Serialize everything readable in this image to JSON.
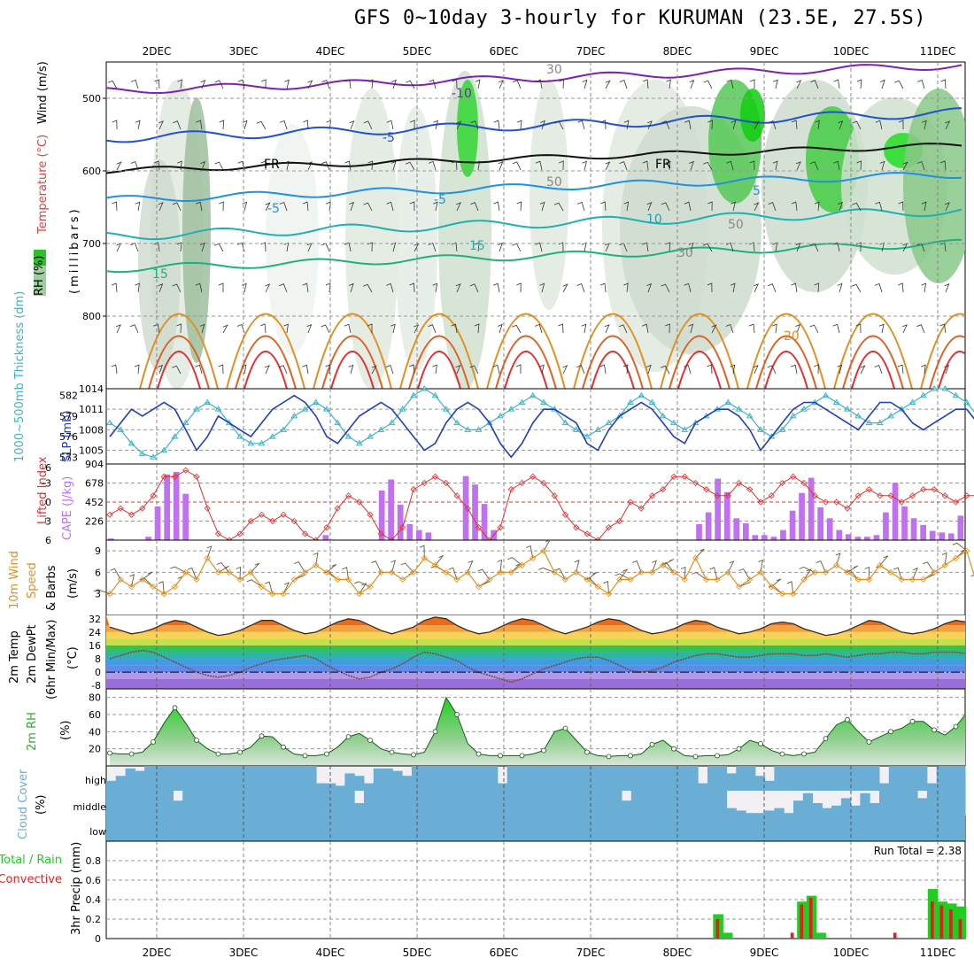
{
  "title": "GFS 0~10day 3-hourly for KURUMAN (23.5E, 27.5S)",
  "dates": [
    "2DEC",
    "3DEC",
    "4DEC",
    "5DEC",
    "6DEC",
    "7DEC",
    "8DEC",
    "9DEC",
    "10DEC",
    "11DEC"
  ],
  "colors": {
    "slp": "#1f3fbf",
    "thickness": "#3fb4c4",
    "lifted_index": "#e03030",
    "cape": "#c071f0",
    "wind_speed": "#e09020",
    "rh_fill": "#2bb02b",
    "cloud": "#6aaed6",
    "cloud_bg": "#f2f0f5",
    "precip_total": "#22cc22",
    "precip_conv": "#e02020"
  },
  "panels": {
    "upper": {
      "label_rh": "RH (%)",
      "label_temperature": "Temperature (°C)",
      "label_wind": "Wind (m/s)",
      "label_axis": "(millibars)",
      "yticks": [
        "500",
        "600",
        "700",
        "800"
      ],
      "contour_labels": [
        "-10",
        "-5",
        "FR",
        "FR",
        "-5",
        "-5",
        "5",
        "10",
        "15",
        "15",
        "20",
        "30",
        "50",
        "50",
        "30"
      ]
    },
    "slp": {
      "label_thickness": "1000~500mb Thickness (dm)",
      "label_slp": "SLP (mb)",
      "thickness_ticks": [
        "582",
        "579",
        "576",
        "573"
      ],
      "slp_ticks": [
        "1014",
        "1011",
        "1008",
        "1005"
      ]
    },
    "li": {
      "label_li": "Lifted Index",
      "label_cape": "CAPE (J/kg)",
      "li_ticks": [
        "-3",
        "0",
        "3",
        "6"
      ],
      "li_top_tick": "-6",
      "cape_ticks": [
        "904",
        "678",
        "452",
        "226"
      ]
    },
    "wind10": {
      "label_a": "10m Wind",
      "label_b": "Speed",
      "label_c": "& Barbs",
      "label_d": "(m/s)",
      "ticks": [
        "9",
        "6",
        "3"
      ]
    },
    "temp2m": {
      "label_a": "2m Temp",
      "label_b": "2m DewPt",
      "label_c": "(6hr Min/Max)",
      "label_d": "(°C)",
      "ticks": [
        "32",
        "24",
        "16",
        "8",
        "0",
        "-8"
      ]
    },
    "rh2m": {
      "label_a": "2m RH",
      "label_b": "(%)",
      "ticks": [
        "80",
        "60",
        "40",
        "20"
      ]
    },
    "cloud": {
      "label_a": "Cloud Cover",
      "label_b": "(%)",
      "levels": [
        "high",
        "middle",
        "low"
      ]
    },
    "precip": {
      "label_a": "Total / Rain",
      "label_b": "Convective",
      "label_c": "3hr Precip (mm)",
      "run_total": "Run Total = 2.38",
      "ticks": [
        "0.8",
        "0.6",
        "0.4",
        "0.2",
        "0"
      ]
    }
  },
  "chart_data": {
    "type": "line",
    "x_step_hours": 3,
    "series": [
      {
        "name": "SLP (mb)",
        "ylim": [
          1003,
          1014
        ],
        "values": [
          1007,
          1009,
          1011,
          1010,
          1011,
          1012,
          1011,
          1008,
          1005,
          1007,
          1010,
          1009,
          1008,
          1007,
          1009,
          1011,
          1012,
          1013,
          1012,
          1010,
          1007,
          1006,
          1008,
          1010,
          1011,
          1012,
          1011,
          1009,
          1007,
          1005,
          1006,
          1009,
          1011,
          1012,
          1011,
          1009,
          1006,
          1004,
          1006,
          1009,
          1011,
          1011,
          1010,
          1009,
          1006,
          1005,
          1008,
          1010,
          1011,
          1012,
          1011,
          1009,
          1007,
          1006,
          1009,
          1010,
          1011,
          1011,
          1010,
          1008,
          1005,
          1007,
          1009,
          1011,
          1012,
          1012,
          1011,
          1010,
          1009,
          1008,
          1010,
          1012,
          1012,
          1011,
          1009,
          1008,
          1009,
          1010,
          1011,
          1011,
          1009,
          1007,
          1009,
          1010,
          1010
        ]
      },
      {
        "name": "1000~500mb Thickness (dm)",
        "ylim": [
          572,
          583
        ],
        "values": [
          578,
          577,
          575,
          573.5,
          573,
          574,
          576,
          578,
          580,
          581,
          580,
          578,
          576,
          575,
          575,
          576,
          577,
          579,
          580,
          581,
          580,
          578,
          576,
          575,
          576,
          577,
          578,
          580,
          582,
          583,
          582,
          580,
          578,
          577,
          577,
          578,
          579,
          580,
          581,
          582,
          581,
          580,
          578,
          577,
          576,
          577,
          578,
          579,
          581,
          582,
          581,
          579,
          578,
          577,
          578,
          579,
          580,
          581,
          580,
          579,
          577,
          576,
          577,
          579,
          580,
          581,
          582,
          581,
          580,
          579,
          578,
          578,
          579,
          580,
          581,
          582,
          583,
          583,
          582,
          581,
          579,
          578,
          577,
          578,
          578
        ]
      },
      {
        "name": "Lifted Index",
        "ylim": [
          6,
          -6
        ],
        "values": [
          2,
          1,
          2,
          1,
          -1,
          -4,
          -4,
          -5,
          -4,
          1,
          5,
          6,
          5,
          3,
          2,
          3,
          2,
          3,
          5,
          6,
          4,
          1,
          -1,
          0,
          2,
          5,
          6,
          4,
          -2,
          -3,
          -4,
          -3,
          -1,
          1,
          4,
          6,
          4,
          -2,
          -3,
          -4,
          -3,
          -1,
          2,
          4,
          5,
          6,
          4,
          3,
          0,
          1,
          -1,
          -2,
          -4,
          -4,
          -3,
          -2,
          -1,
          -1,
          -3,
          -2,
          0,
          -1,
          -3,
          -4,
          -3,
          -1,
          0,
          0,
          1,
          -1,
          -2,
          -1,
          -1,
          0,
          -1,
          -2,
          -2,
          -1,
          0,
          -1,
          -1,
          -2,
          -2,
          -2,
          -2
        ]
      },
      {
        "name": "CAPE (J/kg)",
        "ylim": [
          0,
          904
        ],
        "values": [
          20,
          0,
          0,
          0,
          40,
          400,
          780,
          810,
          550,
          0,
          0,
          0,
          0,
          0,
          0,
          0,
          0,
          0,
          0,
          0,
          0,
          0,
          0,
          60,
          0,
          0,
          0,
          0,
          0,
          590,
          720,
          420,
          190,
          120,
          90,
          0,
          0,
          0,
          760,
          660,
          430,
          120,
          0,
          0,
          0,
          0,
          0,
          0,
          0,
          0,
          0,
          0,
          0,
          0,
          0,
          0,
          0,
          0,
          0,
          0,
          0,
          0,
          0,
          190,
          330,
          730,
          570,
          260,
          200,
          60,
          60,
          40,
          120,
          350,
          560,
          740,
          390,
          260,
          120,
          70,
          40,
          40,
          60,
          330,
          680,
          400,
          260,
          180,
          110,
          90,
          80,
          290
        ]
      },
      {
        "name": "10m Wind Speed (m/s)",
        "ylim": [
          0,
          10.5
        ],
        "values": [
          3,
          5,
          4,
          5,
          4,
          3,
          4,
          6,
          5,
          8,
          6,
          6,
          5,
          6,
          4,
          3,
          3,
          5,
          6,
          7,
          6,
          5,
          5,
          3,
          4,
          6,
          6,
          5,
          6,
          8,
          7,
          6,
          5,
          6,
          4,
          5,
          6,
          6,
          7,
          8,
          9,
          6,
          5,
          6,
          5,
          4,
          3,
          5,
          5,
          6,
          6,
          7,
          6,
          5,
          8,
          5,
          5,
          6,
          4,
          5,
          6,
          4,
          3,
          3,
          5,
          6,
          6,
          7,
          6,
          5,
          5,
          7,
          6,
          5,
          5,
          5,
          6,
          7,
          8,
          9,
          4,
          2,
          1,
          2,
          3,
          4,
          5,
          6,
          5,
          6,
          6,
          5,
          6,
          7,
          6,
          6
        ]
      },
      {
        "name": "2m Temperature (°C)",
        "ylim": [
          -10,
          34
        ],
        "values": [
          27,
          25,
          23,
          24,
          26,
          29,
          31,
          30,
          27,
          24,
          22,
          23,
          25,
          28,
          31,
          31,
          28,
          25,
          23,
          24,
          27,
          30,
          32,
          31,
          28,
          25,
          23,
          25,
          27,
          31,
          33,
          32,
          28,
          25,
          23,
          24,
          27,
          30,
          32,
          31,
          28,
          25,
          23,
          25,
          27,
          30,
          32,
          31,
          28,
          25,
          23,
          24,
          26,
          29,
          31,
          30,
          27,
          25,
          23,
          24,
          26,
          29,
          30,
          29,
          26,
          24,
          22,
          23,
          25,
          28,
          31,
          30,
          27,
          24,
          23,
          24,
          26,
          29,
          31,
          30,
          27,
          25,
          23,
          24,
          25
        ]
      },
      {
        "name": "2m Dew Point (°C)",
        "ylim": [
          -10,
          34
        ],
        "values": [
          8,
          10,
          12,
          13,
          12,
          9,
          6,
          3,
          0,
          -2,
          -3,
          -2,
          0,
          3,
          5,
          7,
          8,
          9,
          10,
          8,
          4,
          1,
          -2,
          -4,
          -3,
          0,
          2,
          5,
          9,
          12,
          11,
          9,
          7,
          3,
          0,
          -2,
          -4,
          -6,
          -4,
          -1,
          2,
          4,
          6,
          8,
          9,
          9,
          7,
          4,
          1,
          0,
          1,
          3,
          6,
          8,
          10,
          11,
          11,
          10,
          9,
          9,
          10,
          11,
          11,
          11,
          10,
          10,
          11,
          10,
          9,
          10,
          11,
          11,
          12,
          12,
          11,
          11,
          12,
          12,
          12,
          11,
          12,
          13,
          14,
          15,
          15
        ]
      },
      {
        "name": "2m RH (%)",
        "ylim": [
          0,
          90
        ],
        "values": [
          15,
          14,
          14,
          16,
          28,
          50,
          68,
          50,
          30,
          20,
          14,
          14,
          16,
          22,
          35,
          34,
          22,
          14,
          12,
          12,
          14,
          22,
          34,
          38,
          30,
          20,
          16,
          14,
          13,
          16,
          40,
          80,
          60,
          26,
          14,
          12,
          12,
          12,
          12,
          14,
          18,
          40,
          44,
          30,
          16,
          12,
          11,
          12,
          12,
          14,
          25,
          30,
          20,
          12,
          11,
          12,
          12,
          13,
          20,
          30,
          26,
          18,
          14,
          12,
          14,
          16,
          32,
          48,
          54,
          40,
          28,
          34,
          40,
          44,
          52,
          52,
          42,
          36,
          46,
          62,
          58,
          50,
          52,
          40,
          30,
          28,
          32,
          54,
          66,
          62,
          52
        ]
      },
      {
        "name": "3hr Precip Total (mm)",
        "ylim": [
          0,
          1.0
        ],
        "values": [
          0,
          0,
          0,
          0,
          0,
          0,
          0,
          0,
          0,
          0,
          0,
          0,
          0,
          0,
          0,
          0,
          0,
          0,
          0,
          0,
          0,
          0,
          0,
          0,
          0,
          0,
          0,
          0,
          0,
          0,
          0,
          0,
          0,
          0,
          0,
          0,
          0,
          0,
          0,
          0,
          0,
          0,
          0,
          0,
          0,
          0,
          0,
          0,
          0,
          0,
          0,
          0,
          0,
          0,
          0,
          0,
          0,
          0,
          0,
          0,
          0,
          0,
          0,
          0,
          0,
          0.25,
          0.06,
          0,
          0,
          0,
          0,
          0,
          0,
          0,
          0.38,
          0.44,
          0.06,
          0,
          0,
          0,
          0,
          0,
          0,
          0,
          0,
          0,
          0,
          0,
          0.51,
          0.38,
          0.36,
          0.33
        ]
      },
      {
        "name": "3hr Convective Precip (mm)",
        "ylim": [
          0,
          1.0
        ],
        "values": [
          0,
          0,
          0,
          0,
          0,
          0,
          0,
          0,
          0,
          0,
          0,
          0,
          0,
          0,
          0,
          0,
          0,
          0,
          0,
          0,
          0,
          0,
          0,
          0,
          0,
          0,
          0,
          0,
          0,
          0,
          0,
          0,
          0,
          0,
          0,
          0,
          0,
          0,
          0,
          0,
          0,
          0,
          0,
          0,
          0,
          0,
          0,
          0,
          0,
          0,
          0,
          0,
          0,
          0,
          0,
          0,
          0,
          0,
          0,
          0,
          0,
          0,
          0,
          0,
          0,
          0.2,
          0,
          0,
          0,
          0,
          0,
          0,
          0,
          0.06,
          0.35,
          0.42,
          0,
          0,
          0,
          0,
          0,
          0,
          0,
          0,
          0.06,
          0,
          0,
          0,
          0.38,
          0.34,
          0.3,
          0.2
        ]
      }
    ],
    "cloud_cover": {
      "high": [
        40,
        60,
        90,
        80,
        100,
        100,
        100,
        100,
        100,
        100,
        100,
        100,
        100,
        100,
        100,
        100,
        100,
        100,
        100,
        100,
        100,
        100,
        30,
        30,
        20,
        70,
        60,
        30,
        90,
        90,
        80,
        60,
        100,
        100,
        100,
        100,
        100,
        100,
        100,
        100,
        100,
        30,
        100,
        100,
        100,
        100,
        100,
        100,
        100,
        100,
        100,
        100,
        100,
        100,
        100,
        100,
        100,
        100,
        100,
        100,
        100,
        100,
        30,
        100,
        100,
        70,
        100,
        100,
        60,
        40,
        100,
        100,
        100,
        100,
        100,
        100,
        100,
        100,
        100,
        100,
        100,
        30,
        100,
        100,
        100,
        100,
        30,
        100,
        100,
        100
      ],
      "middle": [
        100,
        100,
        100,
        100,
        100,
        100,
        100,
        60,
        100,
        100,
        100,
        100,
        100,
        100,
        100,
        100,
        100,
        100,
        100,
        100,
        100,
        100,
        100,
        100,
        100,
        100,
        50,
        100,
        100,
        100,
        100,
        100,
        100,
        100,
        100,
        100,
        100,
        100,
        100,
        100,
        100,
        100,
        100,
        100,
        100,
        100,
        100,
        100,
        100,
        100,
        100,
        100,
        100,
        100,
        60,
        100,
        100,
        100,
        100,
        100,
        100,
        100,
        100,
        100,
        100,
        30,
        20,
        10,
        10,
        20,
        30,
        10,
        60,
        90,
        50,
        30,
        40,
        70,
        40,
        90,
        50,
        100,
        100,
        100,
        100,
        70,
        100,
        100,
        100,
        100
      ]
    },
    "xlabel": "",
    "ylabel": ""
  }
}
